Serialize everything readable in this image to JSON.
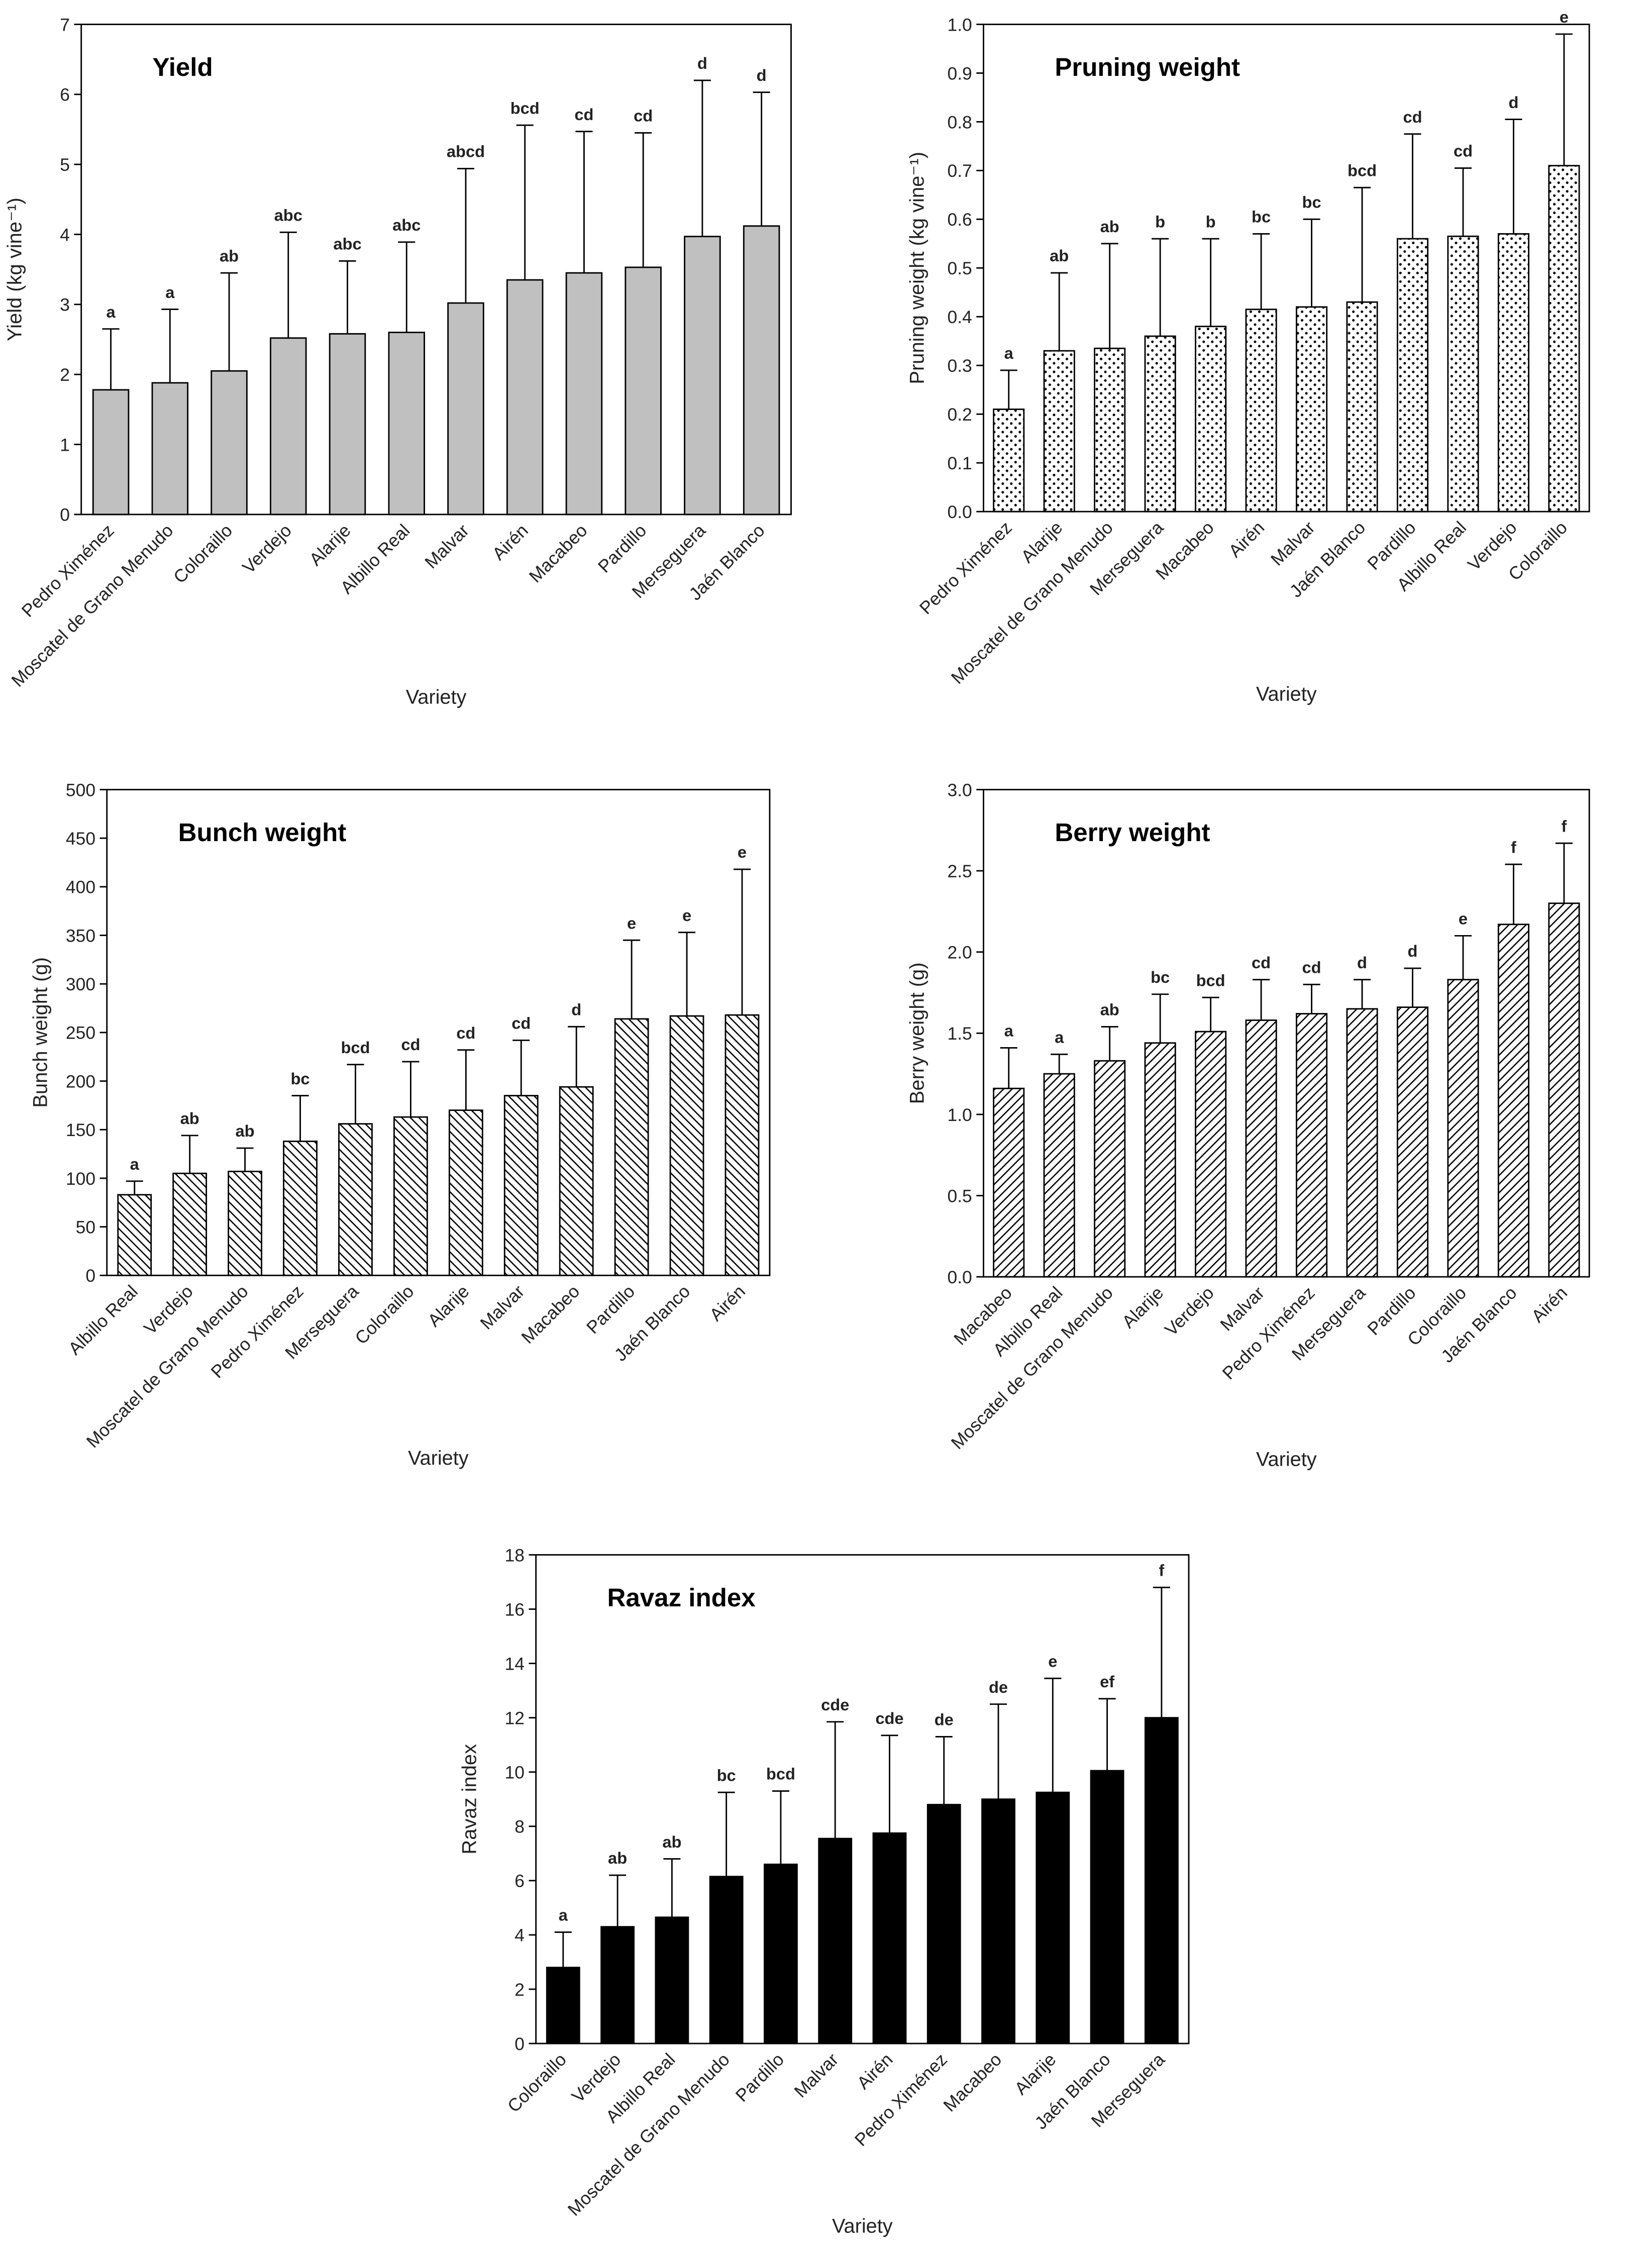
{
  "chart_data": [
    {
      "type": "bar",
      "title": "Yield",
      "y_label": "Yield (kg vine⁻¹)",
      "x_label": "Variety",
      "color": "#c0c0c0",
      "pattern": "solid",
      "categories": [
        "Pedro Ximénez",
        "Moscatel de Grano Menudo",
        "Coloraillo",
        "Verdejo",
        "Alarije",
        "Albillo Real",
        "Malvar",
        "Airén",
        "Macabeo",
        "Pardillo",
        "Merseguera",
        "Jaén Blanco"
      ],
      "values": [
        1.78,
        1.88,
        2.05,
        2.52,
        2.58,
        2.6,
        3.02,
        3.35,
        3.45,
        3.53,
        3.97,
        4.12
      ],
      "errors": [
        0.87,
        1.05,
        1.4,
        1.51,
        1.04,
        1.29,
        1.92,
        2.21,
        2.02,
        1.92,
        2.23,
        1.91
      ],
      "letters": [
        "a",
        "a",
        "ab",
        "abc",
        "abc",
        "abc",
        "abcd",
        "bcd",
        "cd",
        "cd",
        "d",
        "d"
      ],
      "ylim": [
        0,
        7
      ],
      "yticks": [
        0,
        1,
        2,
        3,
        4,
        5,
        6,
        7
      ]
    },
    {
      "type": "bar",
      "title": "Pruning weight",
      "y_label": "Pruning weight (kg vine⁻¹)",
      "x_label": "Variety",
      "color": "#ffffff",
      "pattern": "dots",
      "categories": [
        "Pedro Ximénez",
        "Alarije",
        "Moscatel de Grano Menudo",
        "Merseguera",
        "Macabeo",
        "Airén",
        "Malvar",
        "Jaén Blanco",
        "Pardillo",
        "Albillo Real",
        "Verdejo",
        "Coloraillo"
      ],
      "values": [
        0.21,
        0.33,
        0.335,
        0.36,
        0.38,
        0.415,
        0.42,
        0.43,
        0.56,
        0.565,
        0.57,
        0.71
      ],
      "errors": [
        0.08,
        0.16,
        0.215,
        0.2,
        0.18,
        0.155,
        0.18,
        0.235,
        0.215,
        0.14,
        0.235,
        0.27
      ],
      "letters": [
        "a",
        "ab",
        "ab",
        "b",
        "b",
        "bc",
        "bc",
        "bcd",
        "cd",
        "cd",
        "d",
        "e"
      ],
      "ylim": [
        0,
        1
      ],
      "yticks": [
        {
          "value": 0,
          "label": "0.0"
        },
        0.1,
        0.2,
        0.3,
        0.4,
        0.5,
        0.6,
        0.7,
        0.8,
        0.9,
        {
          "value": 1,
          "label": "1.0"
        }
      ]
    },
    {
      "type": "bar",
      "title": "Bunch weight",
      "y_label": "Bunch weight (g)",
      "x_label": "Variety",
      "color": "#ffffff",
      "pattern": "hatch-back",
      "categories": [
        "Albillo Real",
        "Verdejo",
        "Moscatel de Grano Menudo",
        "Pedro Ximénez",
        "Merseguera",
        "Coloraillo",
        "Alarije",
        "Malvar",
        "Macabeo",
        "Pardillo",
        "Jaén Blanco",
        "Airén"
      ],
      "values": [
        83,
        105,
        107,
        138,
        156,
        163,
        170,
        185,
        194,
        264,
        267,
        268
      ],
      "errors": [
        14,
        39,
        24,
        47,
        61,
        57,
        62,
        57,
        62,
        81,
        86,
        150
      ],
      "letters": [
        "a",
        "ab",
        "ab",
        "bc",
        "bcd",
        "cd",
        "cd",
        "cd",
        "d",
        "e",
        "e",
        "e"
      ],
      "ylim": [
        0,
        500
      ],
      "yticks": [
        0,
        50,
        100,
        150,
        200,
        250,
        300,
        350,
        400,
        450,
        500
      ]
    },
    {
      "type": "bar",
      "title": "Berry weight",
      "y_label": "Berry weight (g)",
      "x_label": "Variety",
      "color": "#ffffff",
      "pattern": "hatch-forward",
      "categories": [
        "Macabeo",
        "Albillo Real",
        "Moscatel de Grano Menudo",
        "Alarije",
        "Verdejo",
        "Malvar",
        "Pedro Ximénez",
        "Merseguera",
        "Pardillo",
        "Coloraillo",
        "Jaén Blanco",
        "Airén"
      ],
      "values": [
        1.16,
        1.25,
        1.33,
        1.44,
        1.51,
        1.58,
        1.62,
        1.65,
        1.66,
        1.83,
        2.17,
        2.3
      ],
      "errors": [
        0.25,
        0.12,
        0.21,
        0.3,
        0.21,
        0.25,
        0.18,
        0.18,
        0.24,
        0.27,
        0.37,
        0.37
      ],
      "letters": [
        "a",
        "a",
        "ab",
        "bc",
        "bcd",
        "cd",
        "cd",
        "d",
        "d",
        "e",
        "f",
        "f"
      ],
      "ylim": [
        0,
        3
      ],
      "yticks": [
        {
          "value": 0,
          "label": "0.0"
        },
        0.5,
        {
          "value": 1,
          "label": "1.0"
        },
        1.5,
        {
          "value": 2,
          "label": "2.0"
        },
        2.5,
        {
          "value": 3,
          "label": "3.0"
        }
      ]
    },
    {
      "type": "bar",
      "title": "Ravaz index",
      "y_label": "Ravaz index",
      "x_label": "Variety",
      "color": "#000000",
      "pattern": "solid",
      "categories": [
        "Coloraillo",
        "Verdejo",
        "Albillo Real",
        "Moscatel de Grano Menudo",
        "Pardillo",
        "Malvar",
        "Airén",
        "Pedro Ximénez",
        "Macabeo",
        "Alarije",
        "Jaén Blanco",
        "Merseguera"
      ],
      "values": [
        2.8,
        4.3,
        4.65,
        6.15,
        6.6,
        7.55,
        7.75,
        8.8,
        9.0,
        9.25,
        10.05,
        12.0
      ],
      "errors": [
        1.3,
        1.9,
        2.15,
        3.1,
        2.7,
        4.3,
        3.6,
        2.5,
        3.5,
        4.2,
        2.65,
        4.8
      ],
      "letters": [
        "a",
        "ab",
        "ab",
        "bc",
        "bcd",
        "cde",
        "cde",
        "de",
        "de",
        "e",
        "ef",
        "f"
      ],
      "ylim": [
        0,
        18
      ],
      "yticks": [
        0,
        2,
        4,
        6,
        8,
        10,
        12,
        14,
        16,
        18
      ]
    }
  ]
}
